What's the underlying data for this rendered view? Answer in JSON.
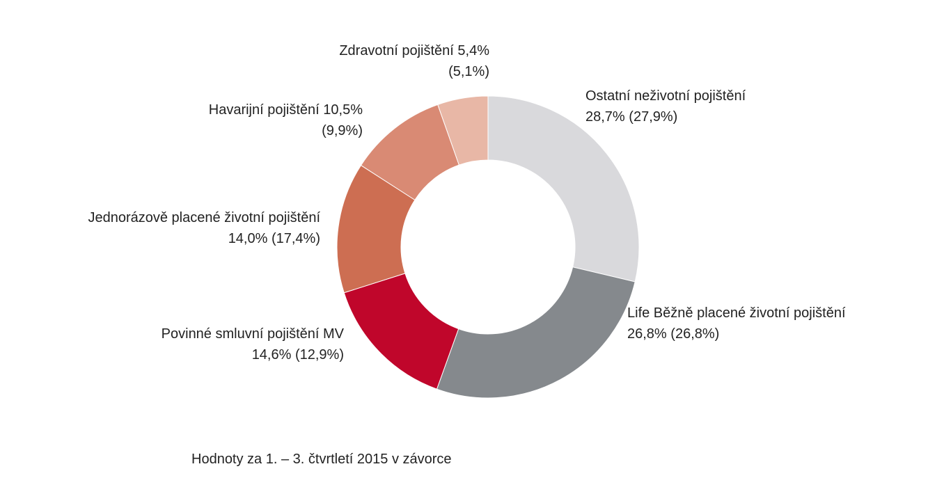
{
  "chart_data": {
    "type": "pie",
    "donut": true,
    "title": "",
    "footnote": "Hodnoty za 1. – 3. čtvrtletí 2015 v závorce",
    "slices": [
      {
        "key": "ostatni",
        "label": "Ostatní neživotní pojištění",
        "value": 28.7,
        "value_text": "28,7%",
        "prev_text": "(27,9%)",
        "color": "#d9d9dc"
      },
      {
        "key": "life",
        "label": "Life Běžně placené životní pojištění",
        "value": 26.8,
        "value_text": "26,8%",
        "prev_text": "(26,8%)",
        "color": "#85898d"
      },
      {
        "key": "povinne",
        "label": "Povinné smluvní pojištění MV",
        "value": 14.6,
        "value_text": "14,6%",
        "prev_text": "(12,9%)",
        "color": "#c0062b"
      },
      {
        "key": "jednorazove",
        "label": "Jednorázově placené životní pojištění",
        "value": 14.0,
        "value_text": "14,0%",
        "prev_text": "(17,4%)",
        "color": "#cd6e52"
      },
      {
        "key": "havarijni",
        "label": "Havarijní pojištění",
        "value": 10.5,
        "value_text": "10,5%",
        "prev_text": "(9,9%)",
        "color": "#d98a74"
      },
      {
        "key": "zdravotni",
        "label": "Zdravotní pojištění",
        "value": 5.4,
        "value_text": "5,4%",
        "prev_text": "(5,1%)",
        "color": "#e8b7a6"
      }
    ]
  }
}
